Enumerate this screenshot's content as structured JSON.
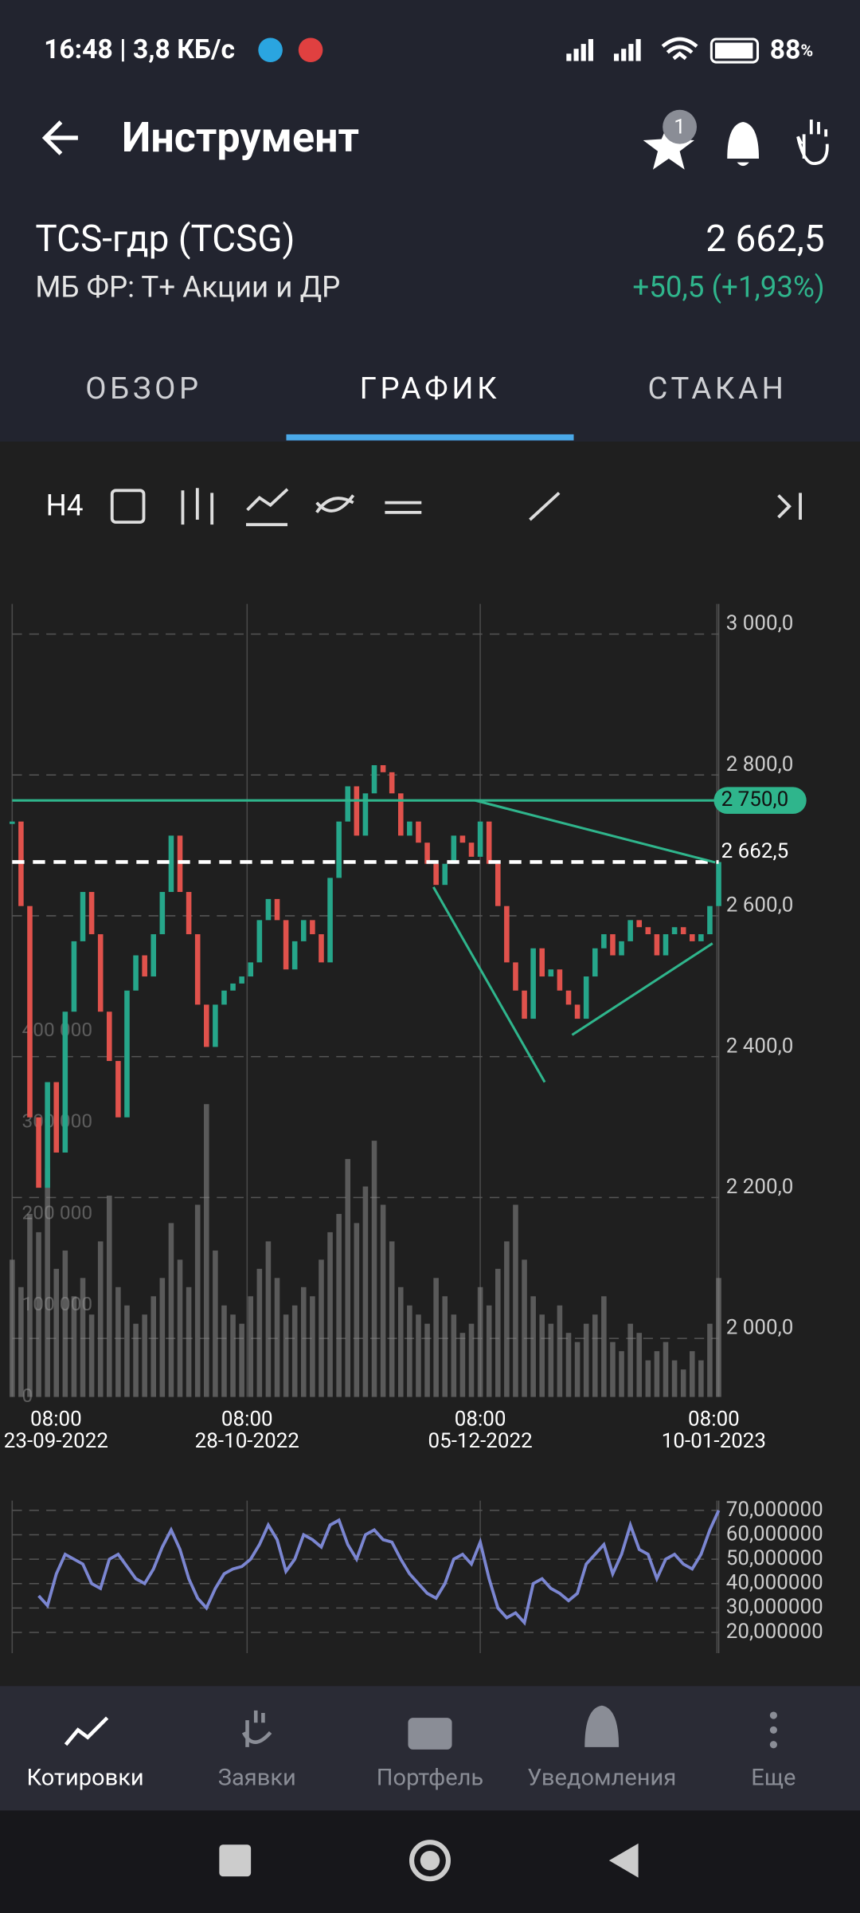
{
  "status_bar": {
    "time": "16:48 | 3,8 КБ/с",
    "battery": "88",
    "battery_unit": "%"
  },
  "header": {
    "title": "Инструмент",
    "badge": "1"
  },
  "instrument": {
    "name": "TCS-гдр (TCSG)",
    "price": "2 662,5",
    "market": "МБ ФР: Т+ Акции и ДР",
    "change": "+50,5 (+1,93%)"
  },
  "tabs": [
    "ОБЗОР",
    "ГРАФИК",
    "СТАКАН"
  ],
  "toolbar": {
    "interval": "H4"
  },
  "chart_data": [
    {
      "type": "candlestick",
      "up_color": "#26a68a",
      "down_color": "#e0524c",
      "volume_color": "#8a8a8a",
      "closes": [
        2720,
        2600,
        2300,
        2200,
        2350,
        2250,
        2450,
        2550,
        2620,
        2560,
        2450,
        2380,
        2300,
        2480,
        2530,
        2500,
        2560,
        2620,
        2700,
        2620,
        2560,
        2460,
        2400,
        2460,
        2480,
        2490,
        2500,
        2520,
        2580,
        2610,
        2580,
        2510,
        2550,
        2580,
        2560,
        2520,
        2640,
        2720,
        2770,
        2700,
        2760,
        2800,
        2790,
        2760,
        2700,
        2720,
        2690,
        2660,
        2630,
        2660,
        2700,
        2690,
        2670,
        2720,
        2660,
        2600,
        2520,
        2480,
        2440,
        2540,
        2500,
        2510,
        2480,
        2460,
        2440,
        2500,
        2540,
        2560,
        2530,
        2550,
        2580,
        2570,
        2560,
        2530,
        2560,
        2570,
        2560,
        2550,
        2560,
        2600,
        2662.5
      ],
      "volume": [
        150000,
        120000,
        200000,
        180000,
        250000,
        140000,
        160000,
        110000,
        130000,
        90000,
        170000,
        220000,
        120000,
        100000,
        80000,
        90000,
        110000,
        130000,
        190000,
        150000,
        120000,
        210000,
        320000,
        160000,
        100000,
        90000,
        80000,
        110000,
        140000,
        170000,
        130000,
        90000,
        100000,
        120000,
        110000,
        150000,
        180000,
        200000,
        260000,
        190000,
        230000,
        280000,
        210000,
        170000,
        120000,
        100000,
        90000,
        80000,
        130000,
        110000,
        90000,
        70000,
        80000,
        120000,
        100000,
        140000,
        170000,
        210000,
        150000,
        110000,
        90000,
        80000,
        100000,
        70000,
        60000,
        80000,
        90000,
        110000,
        60000,
        50000,
        80000,
        70000,
        40000,
        50000,
        60000,
        40000,
        30000,
        50000,
        40000,
        80000,
        130000
      ],
      "xlim": [
        0,
        80
      ],
      "ylim": [
        1903,
        3029
      ],
      "yticks": [
        {
          "value": 3000,
          "label": "3 000,0"
        },
        {
          "value": 2800,
          "label": "2 800,0"
        },
        {
          "value": 2600,
          "label": "2 600,0"
        },
        {
          "value": 2400,
          "label": "2 400,0"
        },
        {
          "value": 2200,
          "label": "2 200,0"
        },
        {
          "value": 2000,
          "label": "2 000,0"
        }
      ],
      "volume_ylim": [
        0,
        866667
      ],
      "volume_ticks": [
        {
          "value": 400000,
          "label": "400 000"
        },
        {
          "value": 300000,
          "label": "300 000"
        },
        {
          "value": 200000,
          "label": "200 000"
        },
        {
          "value": 100000,
          "label": "100 000"
        },
        0
      ],
      "xticks": [
        {
          "value": 0,
          "label": "08:00",
          "date": "23-09-2022"
        },
        {
          "value": 26.6,
          "label": "08:00",
          "date": "28-10-2022"
        },
        {
          "value": 53,
          "label": "08:00",
          "date": "05-12-2022"
        },
        {
          "value": 79.8,
          "label": "08:00",
          "date": "10-01-2023"
        }
      ],
      "levels": [
        {
          "value": 2750,
          "label": "2 750,0",
          "color": "#2fb58c"
        },
        {
          "value": 2662.5,
          "label": "2 662,5",
          "color": "#ffffff",
          "dashed": true
        }
      ],
      "trendlines": [
        [
          [
            52.4,
            2750
          ],
          [
            79.6,
            2662
          ]
        ],
        [
          [
            47.7,
            2627
          ],
          [
            60.3,
            2350
          ]
        ],
        [
          [
            63.4,
            2417
          ],
          [
            79.3,
            2547
          ]
        ]
      ],
      "trend_color": "#2fb58c"
    },
    {
      "type": "line",
      "color": "#7b86d1",
      "xlim": [
        0,
        80
      ],
      "ylim": [
        11.5,
        74
      ],
      "values": [
        null,
        null,
        null,
        35,
        31,
        44,
        52,
        50,
        48,
        40,
        38,
        50,
        52,
        47,
        42,
        40,
        46,
        55,
        62,
        54,
        42,
        34,
        30,
        38,
        44,
        46,
        47,
        50,
        56,
        64,
        58,
        45,
        50,
        60,
        58,
        55,
        64,
        66,
        56,
        50,
        60,
        62,
        58,
        57,
        50,
        44,
        40,
        36,
        34,
        40,
        50,
        52,
        48,
        57,
        42,
        30,
        26,
        28,
        24,
        40,
        42,
        38,
        36,
        33,
        36,
        48,
        52,
        56,
        44,
        52,
        64,
        54,
        52,
        42,
        50,
        52,
        48,
        46,
        52,
        62,
        70
      ],
      "yticks": [
        {
          "value": 70,
          "label": "70,000000"
        },
        {
          "value": 60,
          "label": "60,000000"
        },
        {
          "value": 50,
          "label": "50,000000"
        },
        {
          "value": 40,
          "label": "40,000000"
        },
        {
          "value": 30,
          "label": "30,000000"
        },
        {
          "value": 20,
          "label": "20,000000"
        }
      ]
    }
  ],
  "nav": [
    "Котировки",
    "Заявки",
    "Портфель",
    "Уведомления",
    "Еще"
  ]
}
